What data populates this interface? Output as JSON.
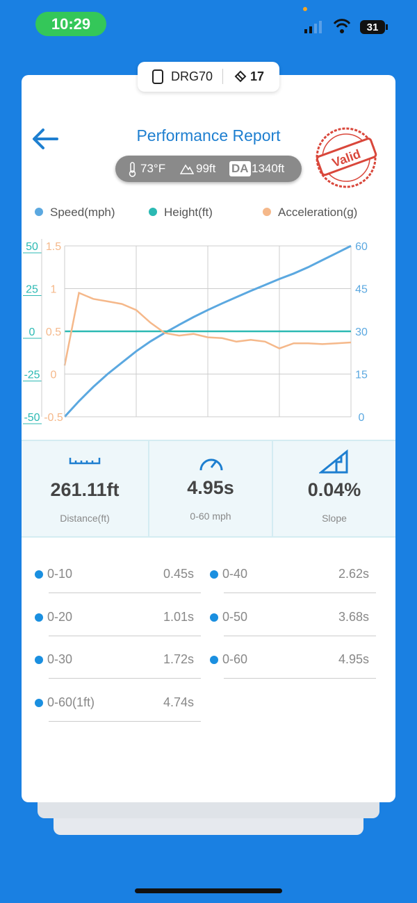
{
  "status_bar": {
    "time": "10:29",
    "battery": "31"
  },
  "device": {
    "name": "DRG70",
    "satellites": "17"
  },
  "header": {
    "title": "Performance Report",
    "stamp": "Valid"
  },
  "conditions": {
    "temperature": "73°F",
    "altitude": "99ft",
    "da_label": "DA",
    "density_altitude": "1340ft"
  },
  "chart_data": {
    "type": "line",
    "grid": true,
    "series": [
      {
        "name": "Speed(mph)",
        "color": "#5ba8e0",
        "axis": "right",
        "ylim": [
          0,
          60
        ],
        "yticks": [
          0,
          15,
          30,
          45,
          60
        ],
        "values": [
          0,
          5.5,
          10.5,
          15,
          19,
          23,
          26.5,
          29.5,
          32.3,
          35,
          37.5,
          39.8,
          42,
          44.2,
          46.3,
          48.4,
          50.3,
          52.5,
          55,
          57.5,
          60
        ]
      },
      {
        "name": "Height(ft)",
        "color": "#2bb9b3",
        "axis": "left-outer",
        "ylim": [
          -50,
          50
        ],
        "yticks": [
          50,
          25,
          0,
          -25,
          -50
        ],
        "values": [
          0,
          0,
          0,
          0,
          0,
          0,
          0,
          0,
          0,
          0,
          0,
          0,
          0,
          0,
          0,
          0,
          0,
          0,
          0,
          0,
          0
        ]
      },
      {
        "name": "Acceleration(g)",
        "color": "#f5b88a",
        "axis": "left-inner",
        "ylim": [
          -0.5,
          1.5
        ],
        "yticks": [
          1.5,
          1,
          0.5,
          0,
          -0.5
        ],
        "values": [
          0.1,
          0.95,
          0.88,
          0.85,
          0.82,
          0.75,
          0.6,
          0.48,
          0.45,
          0.47,
          0.43,
          0.42,
          0.38,
          0.4,
          0.38,
          0.3,
          0.36,
          0.36,
          0.35,
          0.36,
          0.37
        ]
      }
    ]
  },
  "stats": [
    {
      "value": "261.11ft",
      "label": "Distance(ft)"
    },
    {
      "value": "4.95s",
      "label": "0-60 mph"
    },
    {
      "value": "0.04%",
      "label": "Slope"
    }
  ],
  "splits": {
    "left": [
      {
        "range": "0-10",
        "time": "0.45s"
      },
      {
        "range": "0-20",
        "time": "1.01s"
      },
      {
        "range": "0-30",
        "time": "1.72s"
      },
      {
        "range": "0-60(1ft)",
        "time": "4.74s"
      }
    ],
    "right": [
      {
        "range": "0-40",
        "time": "2.62s"
      },
      {
        "range": "0-50",
        "time": "3.68s"
      },
      {
        "range": "0-60",
        "time": "4.95s"
      }
    ]
  }
}
